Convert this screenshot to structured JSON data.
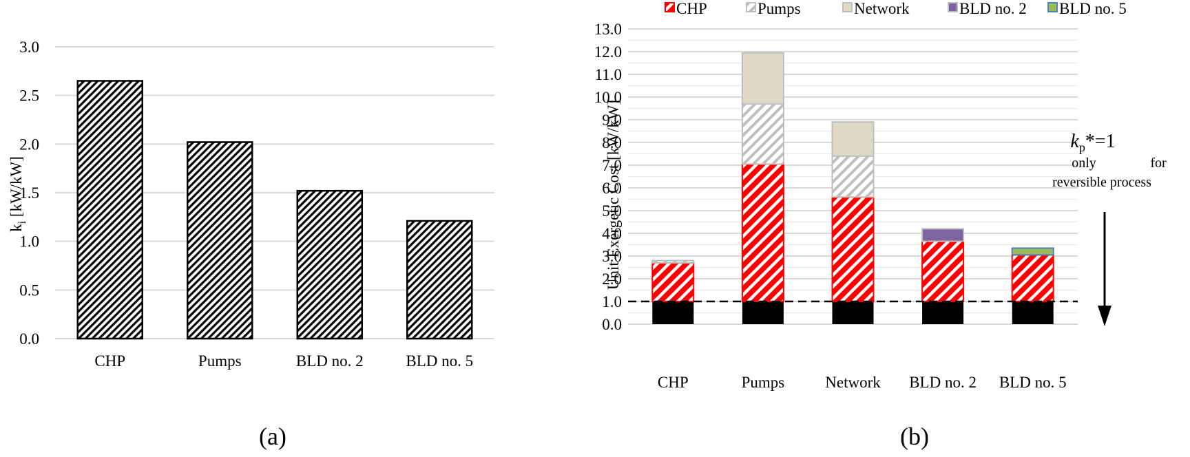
{
  "colors": {
    "grid": "#d9d9d9",
    "bar_outline": "#000000",
    "chp_red": "#ff0000",
    "pumps_grey": "#bfbfbf",
    "network": "#ddd9c4",
    "bld2": "#8064a2",
    "bld5": "#9bbb59",
    "bld5_border": "#4f81bd",
    "base": "#000000"
  },
  "panels": {
    "a": {
      "caption": "(a)"
    },
    "b": {
      "caption": "(b)"
    }
  },
  "chart_data": [
    {
      "type": "bar",
      "panel": "(a)",
      "categories": [
        "CHP",
        "Pumps",
        "BLD no. 2",
        "BLD no. 5"
      ],
      "values": [
        2.65,
        2.02,
        1.52,
        1.21
      ],
      "ylabel_main": "k",
      "ylabel_sub": "i",
      "ylabel_unit": " [kW/kW]",
      "ylim": [
        0,
        3.0
      ],
      "yticks": [
        "0.0",
        "0.5",
        "1.0",
        "1.5",
        "2.0",
        "2.5",
        "3.0"
      ],
      "grid": true,
      "pattern": "black diagonal hatch"
    },
    {
      "type": "bar",
      "stacked": true,
      "panel": "(b)",
      "categories": [
        "CHP",
        "Pumps",
        "Network",
        "BLD no. 2",
        "BLD no. 5"
      ],
      "ylabel": "Unit Exergetic Cost [kW/kW]",
      "ylim": [
        0,
        13.0
      ],
      "yticks": [
        "0.0",
        "1.0",
        "2.0",
        "3.0",
        "4.0",
        "5.0",
        "6.0",
        "7.0",
        "8.0",
        "9.0",
        "10.0",
        "11.0",
        "12.0",
        "13.0"
      ],
      "grid": true,
      "legend_position": "top",
      "base_value": 1.0,
      "series": [
        {
          "name": "CHP",
          "values": [
            1.7,
            6.05,
            4.6,
            2.65,
            2.05
          ]
        },
        {
          "name": "Pumps",
          "values": [
            0.1,
            2.65,
            1.8,
            0.0,
            0.0
          ]
        },
        {
          "name": "Network",
          "values": [
            0.0,
            2.25,
            1.5,
            0.0,
            0.0
          ]
        },
        {
          "name": "BLD no. 2",
          "values": [
            0.0,
            0.0,
            0.0,
            0.55,
            0.0
          ]
        },
        {
          "name": "BLD no. 5",
          "values": [
            0.0,
            0.0,
            0.0,
            0.0,
            0.3
          ]
        }
      ],
      "reference_line": 1.0,
      "annotation": {
        "kp_main": "k",
        "kp_sub": "p",
        "kp_rest": "*=1",
        "line1_a": "only",
        "line1_b": "for",
        "line2": "reversible process"
      }
    }
  ]
}
